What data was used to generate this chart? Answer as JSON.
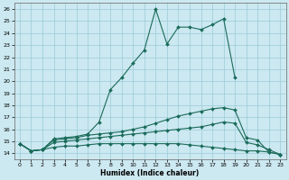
{
  "xlabel": "Humidex (Indice chaleur)",
  "bg_color": "#cce8f0",
  "line_color": "#1a6b5a",
  "grid_color": "#99ccd9",
  "xlim": [
    -0.5,
    23.5
  ],
  "ylim": [
    13.5,
    26.5
  ],
  "xticks": [
    0,
    1,
    2,
    3,
    4,
    5,
    6,
    7,
    8,
    9,
    10,
    11,
    12,
    13,
    14,
    15,
    16,
    17,
    18,
    19,
    20,
    21,
    22,
    23
  ],
  "yticks": [
    14,
    15,
    16,
    17,
    18,
    19,
    20,
    21,
    22,
    23,
    24,
    25,
    26
  ],
  "curve1_x": [
    0,
    1,
    2,
    3,
    4,
    5,
    6,
    7,
    8,
    9,
    10,
    11,
    12,
    13,
    14,
    15,
    16,
    17,
    18,
    19
  ],
  "curve1_y": [
    14.8,
    14.2,
    14.3,
    15.2,
    15.3,
    15.4,
    15.6,
    16.6,
    19.3,
    20.3,
    21.5,
    22.6,
    26.0,
    23.1,
    24.5,
    24.5,
    24.3,
    24.7,
    25.2,
    20.3
  ],
  "curve2_x": [
    0,
    1,
    2,
    3,
    4,
    5,
    6,
    7,
    8,
    9,
    10,
    11,
    12,
    13,
    14,
    15,
    16,
    17,
    18,
    19,
    20,
    21,
    22,
    23
  ],
  "curve2_y": [
    14.8,
    14.2,
    14.3,
    15.1,
    15.2,
    15.3,
    15.5,
    15.6,
    15.7,
    15.8,
    16.0,
    16.2,
    16.5,
    16.8,
    17.1,
    17.3,
    17.5,
    17.7,
    17.8,
    17.6,
    15.3,
    15.1,
    14.1,
    13.9
  ],
  "curve3_x": [
    0,
    1,
    2,
    3,
    4,
    5,
    6,
    7,
    8,
    9,
    10,
    11,
    12,
    13,
    14,
    15,
    16,
    17,
    18,
    19,
    20,
    21,
    22,
    23
  ],
  "curve3_y": [
    14.8,
    14.2,
    14.3,
    14.9,
    15.0,
    15.1,
    15.2,
    15.3,
    15.4,
    15.5,
    15.6,
    15.7,
    15.8,
    15.9,
    16.0,
    16.1,
    16.2,
    16.4,
    16.6,
    16.5,
    14.9,
    14.7,
    14.3,
    13.9
  ],
  "curve4_x": [
    0,
    1,
    2,
    3,
    4,
    5,
    6,
    7,
    8,
    9,
    10,
    11,
    12,
    13,
    14,
    15,
    16,
    17,
    18,
    19,
    20,
    21,
    22,
    23
  ],
  "curve4_y": [
    14.8,
    14.2,
    14.3,
    14.5,
    14.6,
    14.6,
    14.7,
    14.8,
    14.8,
    14.8,
    14.8,
    14.8,
    14.8,
    14.8,
    14.8,
    14.7,
    14.6,
    14.5,
    14.4,
    14.3,
    14.2,
    14.2,
    14.1,
    13.9
  ]
}
